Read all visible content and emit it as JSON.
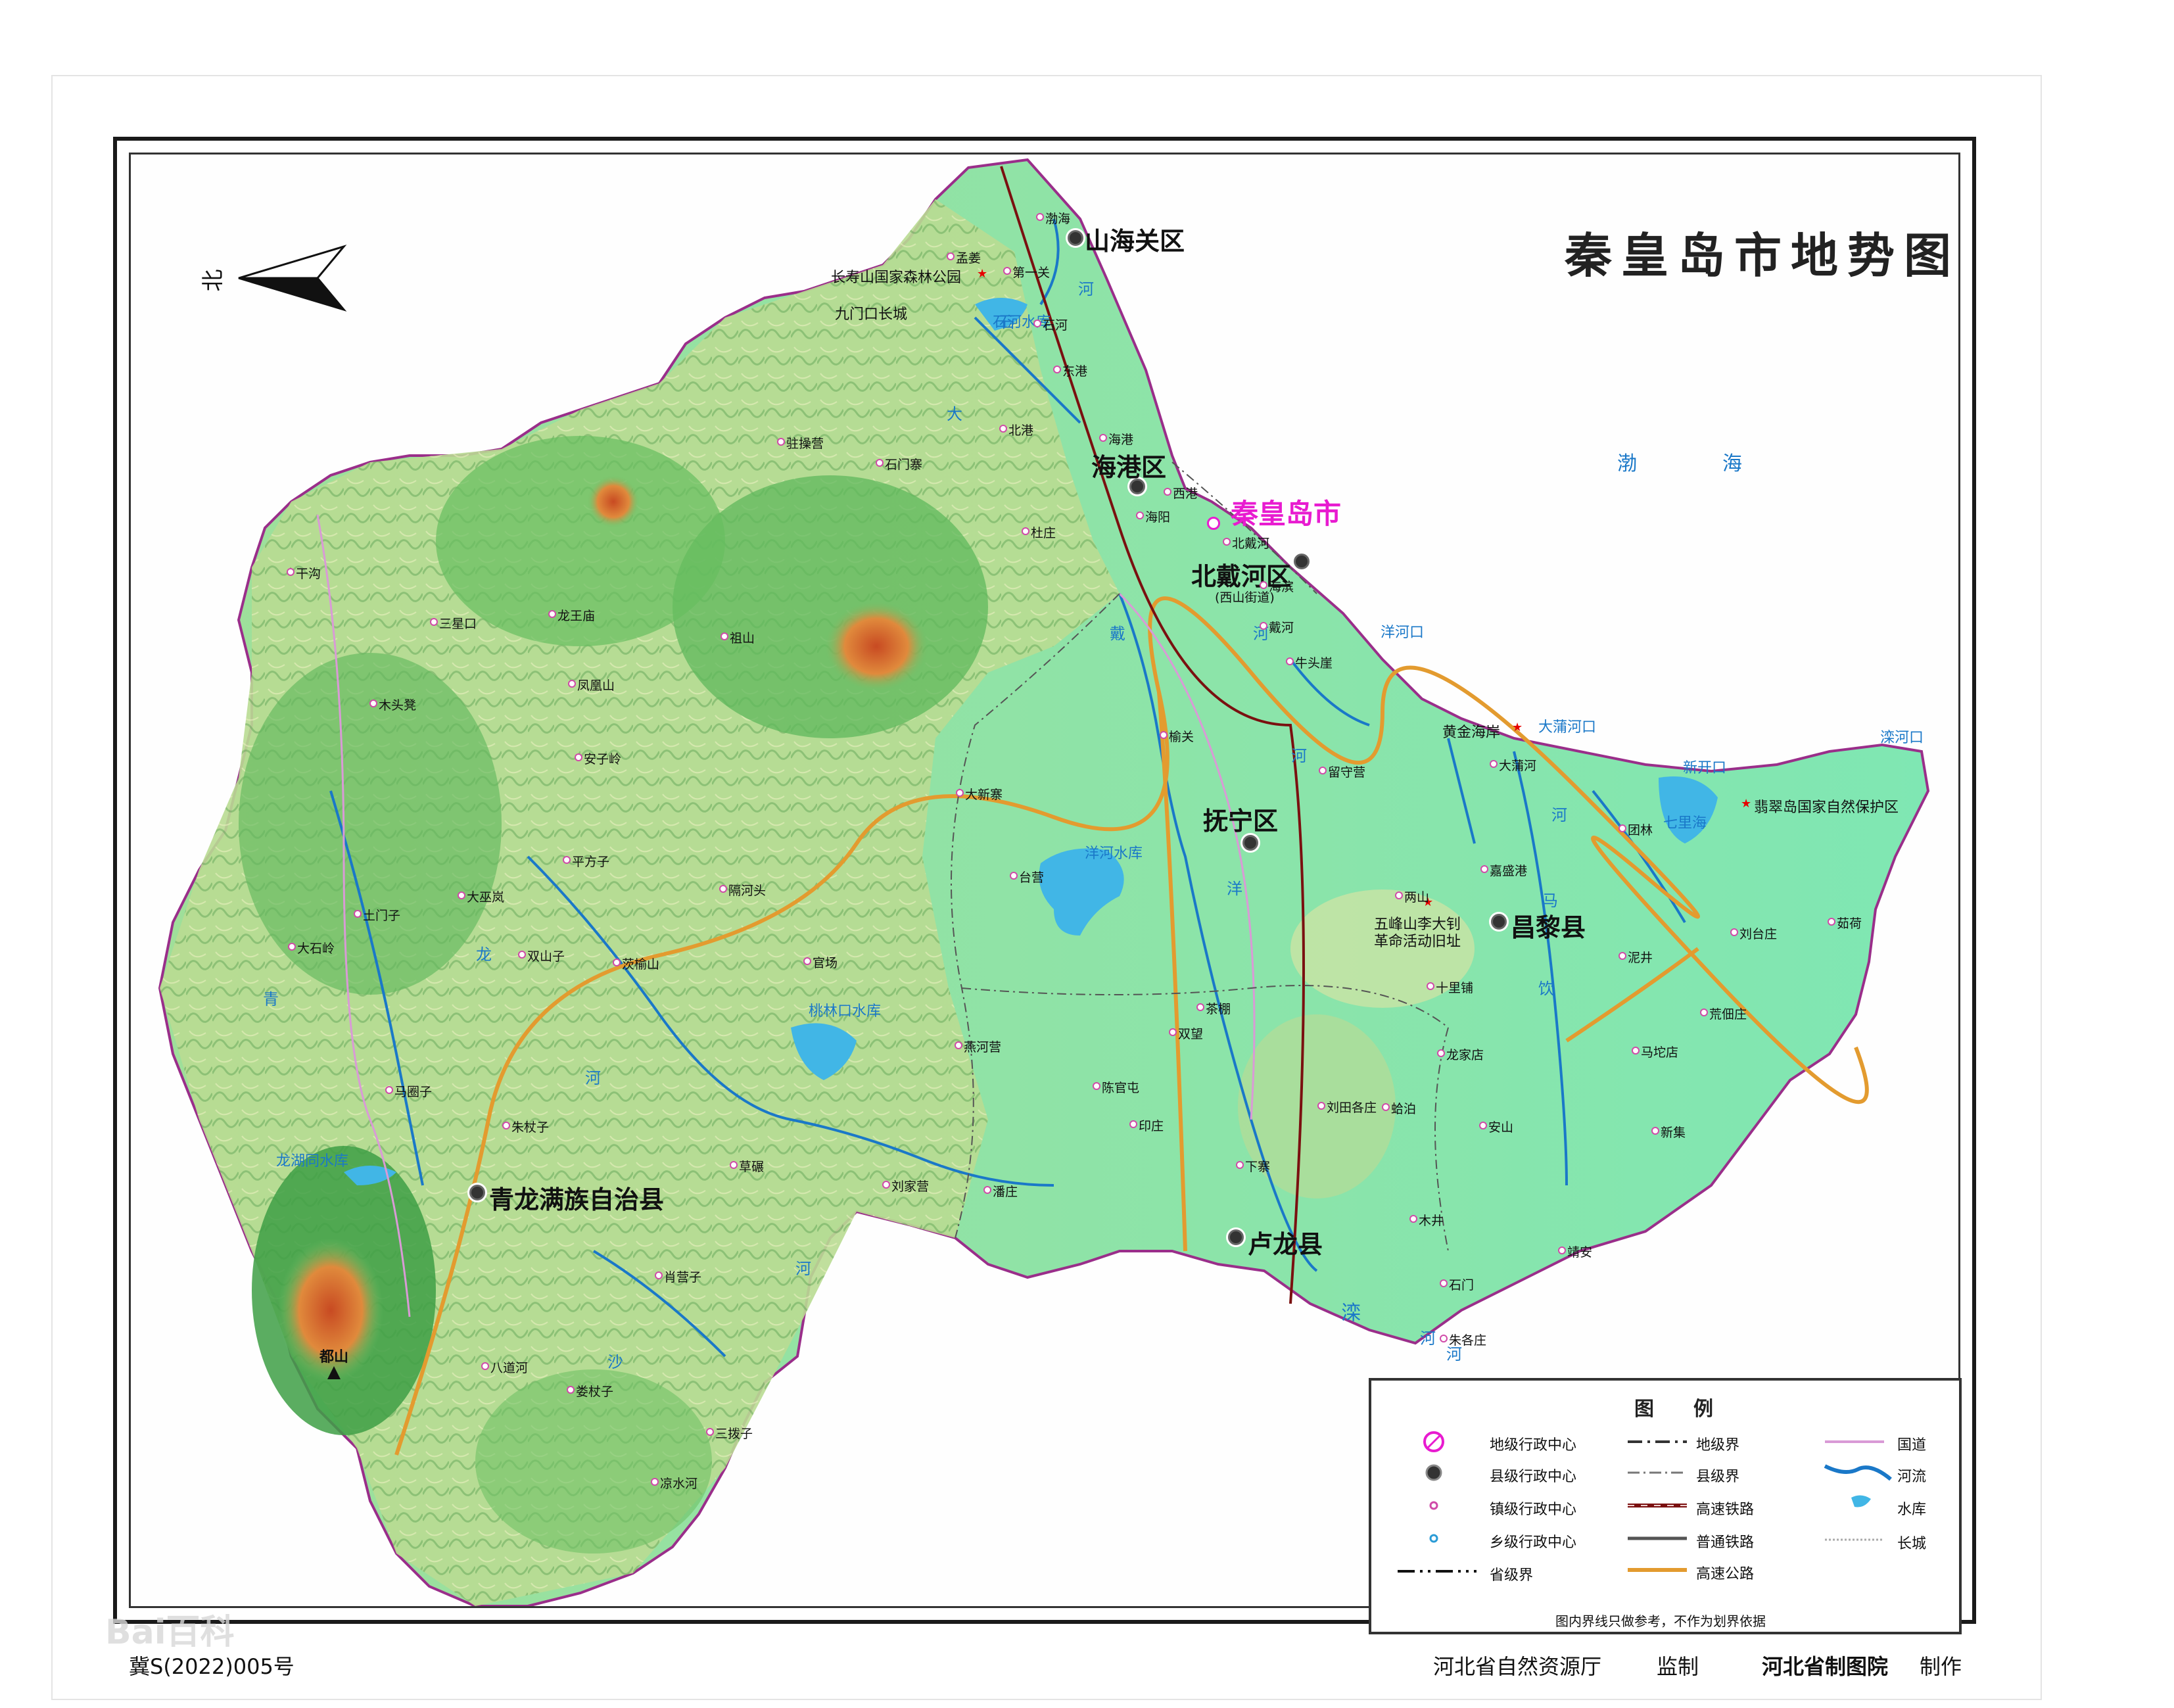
{
  "map": {
    "title": "秦皇岛市地势图",
    "north_label": "北",
    "city_center": "秦皇岛市",
    "districts": [
      "山海关区",
      "海港区",
      "北戴河区",
      "抚宁区",
      "昌黎县",
      "卢龙县",
      "青龙满族自治县"
    ],
    "beidaihe_subnote": "(西山街道)",
    "sea": {
      "char1": "渤",
      "char2": "海"
    },
    "reservoirs": [
      "石河水库",
      "洋河水库",
      "桃林口水库",
      "龙湖同水库"
    ],
    "estuaries": [
      "洋河口",
      "大蒲河口",
      "新开口",
      "滦河口"
    ],
    "lakes": [
      "七里海"
    ],
    "poi": [
      "长寿山国家森林公园",
      "九门口长城",
      "黄金海岸",
      "翡翠岛国家自然保护区",
      "五峰山李大钊革命活动旧址",
      "都山"
    ],
    "towns": [
      "渤海",
      "孟姜",
      "第一关",
      "石河",
      "东港",
      "北港",
      "海港",
      "西港",
      "海阳",
      "驻操营",
      "石门寨",
      "杜庄",
      "北戴河",
      "海滨",
      "戴河",
      "牛头崖",
      "榆关",
      "留守营",
      "大蒲河",
      "团林",
      "刘台庄",
      "茹荷",
      "干沟",
      "三星口",
      "龙王庙",
      "祖山",
      "凤凰山",
      "木头凳",
      "安子岭",
      "大新寨",
      "平方子",
      "台营",
      "大巫岚",
      "土门子",
      "隔河头",
      "大石岭",
      "双山子",
      "茨榆山",
      "官场",
      "两山",
      "蛤泊",
      "嘉盛港",
      "泥井",
      "十里铺",
      "茶棚",
      "荒佃庄",
      "马圈子",
      "朱杖子",
      "燕河营",
      "双望",
      "龙家店",
      "马坨店",
      "陈官屯",
      "刘田各庄",
      "印庄",
      "安山",
      "新集",
      "草碾",
      "刘家营",
      "潘庄",
      "下寨",
      "木井",
      "靖安",
      "肖营子",
      "石门",
      "朱各庄",
      "八道河",
      "娄杖子",
      "三拨子",
      "凉水河"
    ],
    "river_chars": [
      "石",
      "河",
      "大",
      "戴",
      "河",
      "洋",
      "河",
      "青",
      "龙",
      "河",
      "沙",
      "河",
      "饮",
      "马",
      "河",
      "滦",
      "河",
      "河"
    ]
  },
  "legend": {
    "title": "图例",
    "items": [
      "地级行政中心",
      "县级行政中心",
      "镇级行政中心",
      "乡级行政中心",
      "省级界",
      "地级界",
      "县级界",
      "高速铁路",
      "普通铁路",
      "高速公路",
      "国道",
      "河流",
      "水库",
      "长城"
    ],
    "note": "图内界线只做参考，不作为划界依据"
  },
  "footer": {
    "approval": "冀S(2022)005号",
    "supervisor": "河北省自然资源厅",
    "supervise_label": "监制",
    "producer": "河北省制图院",
    "produce_label": "制作"
  },
  "watermark": "Bai百科",
  "colors": {
    "plain": "#7fe7b3",
    "hill_light": "#c7e4a4",
    "hill": "#6cc26c",
    "mountain": "#3aa34b",
    "peak": "#d9582a",
    "sea": "#ffffff",
    "river": "#1a78c8",
    "reservoir": "#41b6e6",
    "highway": "#e39b2f",
    "national_road": "#d99ad6",
    "railway": "#7a1010",
    "city_magenta": "#e81bd0"
  }
}
